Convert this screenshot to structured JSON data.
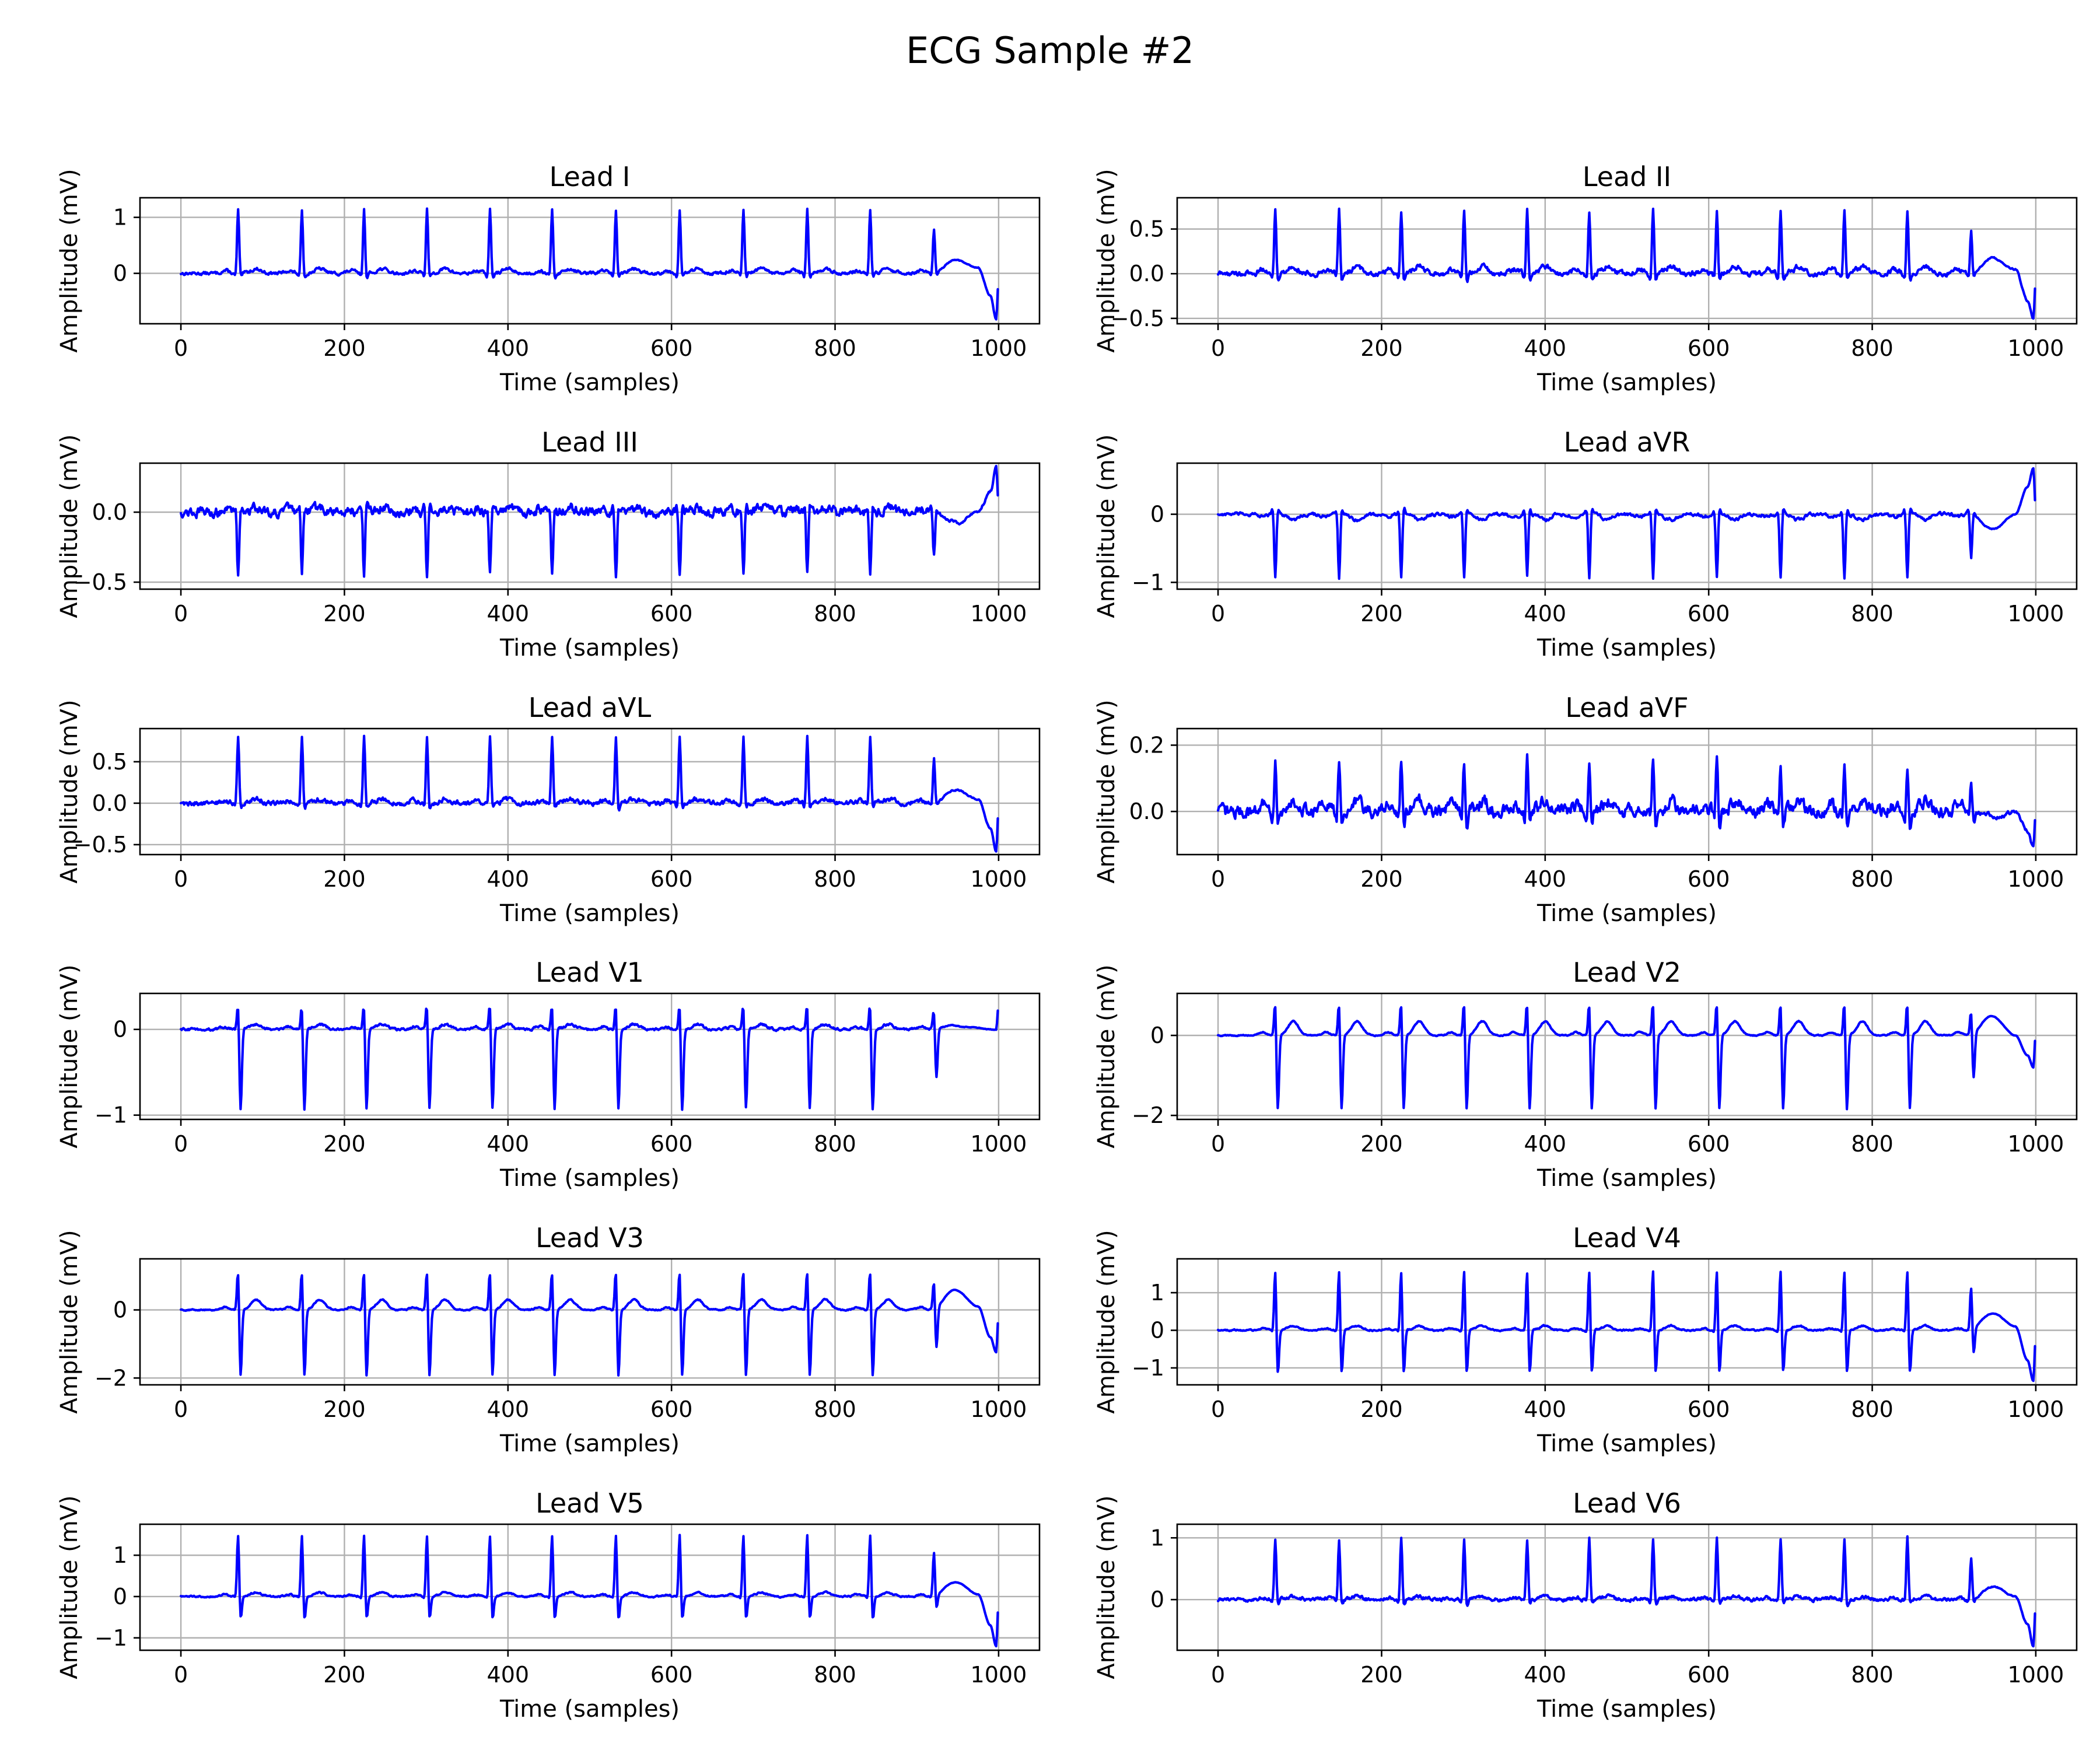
{
  "figure": {
    "suptitle": "ECG Sample #2"
  },
  "chart_data": [
    {
      "type": "line",
      "title": "Lead I",
      "xlabel": "Time (samples)",
      "ylabel": "Amplitude (mV)",
      "xlim": [
        -50,
        1050
      ],
      "ylim": [
        -0.9,
        1.35
      ],
      "xticks": [
        0,
        200,
        400,
        600,
        800,
        1000
      ],
      "yticks": [
        0,
        1
      ],
      "ytick_labels": [
        "0",
        "1"
      ],
      "grid": true,
      "color": "#0000ff",
      "waveform": {
        "qrs_peaks": [
          70,
          148,
          224,
          301,
          378,
          454,
          532,
          610,
          688,
          766,
          843,
          921
        ],
        "r_amp": 1.15,
        "q_amp": -0.08,
        "s_amp": -0.1,
        "t_amp": 0.08,
        "p_amp": 0.05,
        "noise": 0.03,
        "end_ctrl": [
          [
            910,
            -0.05
          ],
          [
            950,
            0.22
          ],
          [
            975,
            0.1
          ],
          [
            990,
            -0.4
          ],
          [
            997,
            -0.82
          ],
          [
            1000,
            -0.1
          ]
        ]
      }
    },
    {
      "type": "line",
      "title": "Lead II",
      "xlabel": "Time (samples)",
      "ylabel": "Amplitude (mV)",
      "xlim": [
        -50,
        1050
      ],
      "ylim": [
        -0.56,
        0.85
      ],
      "xticks": [
        0,
        200,
        400,
        600,
        800,
        1000
      ],
      "yticks": [
        -0.5,
        0,
        0.5
      ],
      "ytick_labels": [
        "−0.5",
        "0.0",
        "0.5"
      ],
      "grid": true,
      "color": "#0000ff",
      "waveform": {
        "qrs_peaks": [
          70,
          148,
          224,
          301,
          378,
          454,
          532,
          610,
          688,
          766,
          843,
          921
        ],
        "r_amp": 0.72,
        "q_amp": -0.06,
        "s_amp": -0.1,
        "t_amp": 0.08,
        "p_amp": 0.05,
        "noise": 0.03,
        "end_ctrl": [
          [
            910,
            -0.05
          ],
          [
            950,
            0.16
          ],
          [
            975,
            0.05
          ],
          [
            990,
            -0.3
          ],
          [
            997,
            -0.5
          ],
          [
            1000,
            -0.05
          ]
        ]
      }
    },
    {
      "type": "line",
      "title": "Lead III",
      "xlabel": "Time (samples)",
      "ylabel": "Amplitude (mV)",
      "xlim": [
        -50,
        1050
      ],
      "ylim": [
        -0.55,
        0.35
      ],
      "xticks": [
        0,
        200,
        400,
        600,
        800,
        1000
      ],
      "yticks": [
        -0.5,
        0
      ],
      "ytick_labels": [
        "−0.5",
        "0.0"
      ],
      "grid": true,
      "color": "#0000ff",
      "waveform": {
        "qrs_peaks": [
          70,
          148,
          224,
          301,
          378,
          454,
          532,
          610,
          688,
          766,
          843,
          921
        ],
        "r_amp": -0.46,
        "q_amp": 0.05,
        "s_amp": 0.06,
        "t_amp": 0.03,
        "p_amp": 0.02,
        "noise": 0.035,
        "end_ctrl": [
          [
            910,
            0.02
          ],
          [
            950,
            -0.08
          ],
          [
            975,
            0.0
          ],
          [
            990,
            0.15
          ],
          [
            997,
            0.32
          ],
          [
            1000,
            0.05
          ]
        ]
      }
    },
    {
      "type": "line",
      "title": "Lead aVR",
      "xlabel": "Time (samples)",
      "ylabel": "Amplitude (mV)",
      "xlim": [
        -50,
        1050
      ],
      "ylim": [
        -1.1,
        0.75
      ],
      "xticks": [
        0,
        200,
        400,
        600,
        800,
        1000
      ],
      "yticks": [
        -1,
        0
      ],
      "ytick_labels": [
        "−1",
        "0"
      ],
      "grid": true,
      "color": "#0000ff",
      "waveform": {
        "qrs_peaks": [
          70,
          148,
          224,
          301,
          378,
          454,
          532,
          610,
          688,
          766,
          843,
          921
        ],
        "r_amp": -0.95,
        "q_amp": 0.08,
        "s_amp": 0.1,
        "t_amp": -0.08,
        "p_amp": -0.04,
        "noise": 0.025,
        "end_ctrl": [
          [
            910,
            0.05
          ],
          [
            950,
            -0.2
          ],
          [
            975,
            0.0
          ],
          [
            990,
            0.4
          ],
          [
            997,
            0.68
          ],
          [
            1000,
            0.05
          ]
        ]
      }
    },
    {
      "type": "line",
      "title": "Lead aVL",
      "xlabel": "Time (samples)",
      "ylabel": "Amplitude (mV)",
      "xlim": [
        -50,
        1050
      ],
      "ylim": [
        -0.62,
        0.9
      ],
      "xticks": [
        0,
        200,
        400,
        600,
        800,
        1000
      ],
      "yticks": [
        -0.5,
        0,
        0.5
      ],
      "ytick_labels": [
        "−0.5",
        "0.0",
        "0.5"
      ],
      "grid": true,
      "color": "#0000ff",
      "waveform": {
        "qrs_peaks": [
          70,
          148,
          224,
          301,
          378,
          454,
          532,
          610,
          688,
          766,
          843,
          921
        ],
        "r_amp": 0.8,
        "q_amp": -0.05,
        "s_amp": -0.08,
        "t_amp": 0.05,
        "p_amp": 0.03,
        "noise": 0.03,
        "end_ctrl": [
          [
            910,
            -0.04
          ],
          [
            950,
            0.15
          ],
          [
            975,
            0.05
          ],
          [
            990,
            -0.3
          ],
          [
            997,
            -0.58
          ],
          [
            1000,
            -0.05
          ]
        ]
      }
    },
    {
      "type": "line",
      "title": "Lead aVF",
      "xlabel": "Time (samples)",
      "ylabel": "Amplitude (mV)",
      "xlim": [
        -50,
        1050
      ],
      "ylim": [
        -0.13,
        0.25
      ],
      "xticks": [
        0,
        200,
        400,
        600,
        800,
        1000
      ],
      "yticks": [
        0,
        0.2
      ],
      "ytick_labels": [
        "0.0",
        "0.2"
      ],
      "grid": true,
      "color": "#0000ff",
      "waveform": {
        "qrs_peaks": [
          70,
          148,
          224,
          301,
          378,
          454,
          532,
          610,
          688,
          766,
          843,
          921
        ],
        "r_amp": 0.16,
        "q_amp": -0.03,
        "s_amp": -0.05,
        "t_amp": 0.03,
        "p_amp": 0.02,
        "noise": 0.02,
        "end_ctrl": [
          [
            910,
            0.0
          ],
          [
            950,
            -0.02
          ],
          [
            975,
            0.0
          ],
          [
            990,
            -0.06
          ],
          [
            997,
            -0.11
          ],
          [
            1000,
            0.0
          ]
        ]
      }
    },
    {
      "type": "line",
      "title": "Lead V1",
      "xlabel": "Time (samples)",
      "ylabel": "Amplitude (mV)",
      "xlim": [
        -50,
        1050
      ],
      "ylim": [
        -1.05,
        0.42
      ],
      "xticks": [
        0,
        200,
        400,
        600,
        800,
        1000
      ],
      "yticks": [
        -1,
        0
      ],
      "ytick_labels": [
        "−1",
        "0"
      ],
      "grid": true,
      "color": "#0000ff",
      "waveform": {
        "qrs_peaks": [
          70,
          148,
          224,
          301,
          378,
          454,
          532,
          610,
          688,
          766,
          843,
          921
        ],
        "r_amp": 0.35,
        "q_amp": 0.0,
        "s_amp": -0.95,
        "t_amp": 0.06,
        "p_amp": 0.03,
        "noise": 0.015,
        "end_ctrl": [
          [
            910,
            0.02
          ],
          [
            950,
            0.03
          ],
          [
            975,
            0.02
          ],
          [
            990,
            0.0
          ],
          [
            997,
            0.0
          ],
          [
            1000,
            0.3
          ]
        ]
      }
    },
    {
      "type": "line",
      "title": "Lead V2",
      "xlabel": "Time (samples)",
      "ylabel": "Amplitude (mV)",
      "xlim": [
        -50,
        1050
      ],
      "ylim": [
        -2.1,
        1.05
      ],
      "xticks": [
        0,
        200,
        400,
        600,
        800,
        1000
      ],
      "yticks": [
        -2,
        0
      ],
      "ytick_labels": [
        "−2",
        "0"
      ],
      "grid": true,
      "color": "#0000ff",
      "waveform": {
        "qrs_peaks": [
          70,
          148,
          224,
          301,
          378,
          454,
          532,
          610,
          688,
          766,
          843,
          921
        ],
        "r_amp": 0.95,
        "q_amp": 0.0,
        "s_amp": -1.9,
        "t_amp": 0.35,
        "p_amp": 0.08,
        "noise": 0.015,
        "end_ctrl": [
          [
            910,
            0.0
          ],
          [
            950,
            0.4
          ],
          [
            975,
            0.0
          ],
          [
            990,
            -0.5
          ],
          [
            997,
            -0.8
          ],
          [
            1000,
            0.1
          ]
        ]
      }
    },
    {
      "type": "line",
      "title": "Lead V3",
      "xlabel": "Time (samples)",
      "ylabel": "Amplitude (mV)",
      "xlim": [
        -50,
        1050
      ],
      "ylim": [
        -2.2,
        1.5
      ],
      "xticks": [
        0,
        200,
        400,
        600,
        800,
        1000
      ],
      "yticks": [
        -2,
        0
      ],
      "ytick_labels": [
        "−2",
        "0"
      ],
      "grid": true,
      "color": "#0000ff",
      "waveform": {
        "qrs_peaks": [
          70,
          148,
          224,
          301,
          378,
          454,
          532,
          610,
          688,
          766,
          843,
          921
        ],
        "r_amp": 1.3,
        "q_amp": 0.0,
        "s_amp": -2.0,
        "t_amp": 0.3,
        "p_amp": 0.08,
        "noise": 0.02,
        "end_ctrl": [
          [
            910,
            0.0
          ],
          [
            950,
            0.52
          ],
          [
            975,
            0.1
          ],
          [
            990,
            -0.8
          ],
          [
            997,
            -1.25
          ],
          [
            1000,
            -0.1
          ]
        ]
      }
    },
    {
      "type": "line",
      "title": "Lead V4",
      "xlabel": "Time (samples)",
      "ylabel": "Amplitude (mV)",
      "xlim": [
        -50,
        1050
      ],
      "ylim": [
        -1.45,
        1.9
      ],
      "xticks": [
        0,
        200,
        400,
        600,
        800,
        1000
      ],
      "yticks": [
        -1,
        0,
        1
      ],
      "ytick_labels": [
        "−1",
        "0",
        "1"
      ],
      "grid": true,
      "color": "#0000ff",
      "waveform": {
        "qrs_peaks": [
          70,
          148,
          224,
          301,
          378,
          454,
          532,
          610,
          688,
          766,
          843,
          921
        ],
        "r_amp": 1.7,
        "q_amp": -0.05,
        "s_amp": -1.2,
        "t_amp": 0.12,
        "p_amp": 0.05,
        "noise": 0.02,
        "end_ctrl": [
          [
            910,
            0.0
          ],
          [
            950,
            0.42
          ],
          [
            975,
            0.1
          ],
          [
            990,
            -0.8
          ],
          [
            997,
            -1.35
          ],
          [
            1000,
            -0.1
          ]
        ]
      }
    },
    {
      "type": "line",
      "title": "Lead V5",
      "xlabel": "Time (samples)",
      "ylabel": "Amplitude (mV)",
      "xlim": [
        -50,
        1050
      ],
      "ylim": [
        -1.3,
        1.75
      ],
      "xticks": [
        0,
        200,
        400,
        600,
        800,
        1000
      ],
      "yticks": [
        -1,
        0,
        1
      ],
      "ytick_labels": [
        "−1",
        "0",
        "1"
      ],
      "grid": true,
      "color": "#0000ff",
      "waveform": {
        "qrs_peaks": [
          70,
          148,
          224,
          301,
          378,
          454,
          532,
          610,
          688,
          766,
          843,
          921
        ],
        "r_amp": 1.55,
        "q_amp": -0.05,
        "s_amp": -0.6,
        "t_amp": 0.1,
        "p_amp": 0.05,
        "noise": 0.02,
        "end_ctrl": [
          [
            910,
            0.0
          ],
          [
            950,
            0.32
          ],
          [
            975,
            0.05
          ],
          [
            990,
            -0.7
          ],
          [
            997,
            -1.2
          ],
          [
            1000,
            -0.1
          ]
        ]
      }
    },
    {
      "type": "line",
      "title": "Lead V6",
      "xlabel": "Time (samples)",
      "ylabel": "Amplitude (mV)",
      "xlim": [
        -50,
        1050
      ],
      "ylim": [
        -0.82,
        1.22
      ],
      "xticks": [
        0,
        200,
        400,
        600,
        800,
        1000
      ],
      "yticks": [
        0,
        1
      ],
      "ytick_labels": [
        "0",
        "1"
      ],
      "grid": true,
      "color": "#0000ff",
      "waveform": {
        "qrs_peaks": [
          70,
          148,
          224,
          301,
          378,
          454,
          532,
          610,
          688,
          766,
          843,
          921
        ],
        "r_amp": 1.0,
        "q_amp": -0.05,
        "s_amp": -0.1,
        "t_amp": 0.05,
        "p_amp": 0.03,
        "noise": 0.03,
        "end_ctrl": [
          [
            910,
            -0.05
          ],
          [
            950,
            0.2
          ],
          [
            975,
            0.05
          ],
          [
            990,
            -0.4
          ],
          [
            997,
            -0.75
          ],
          [
            1000,
            -0.05
          ]
        ]
      }
    }
  ]
}
